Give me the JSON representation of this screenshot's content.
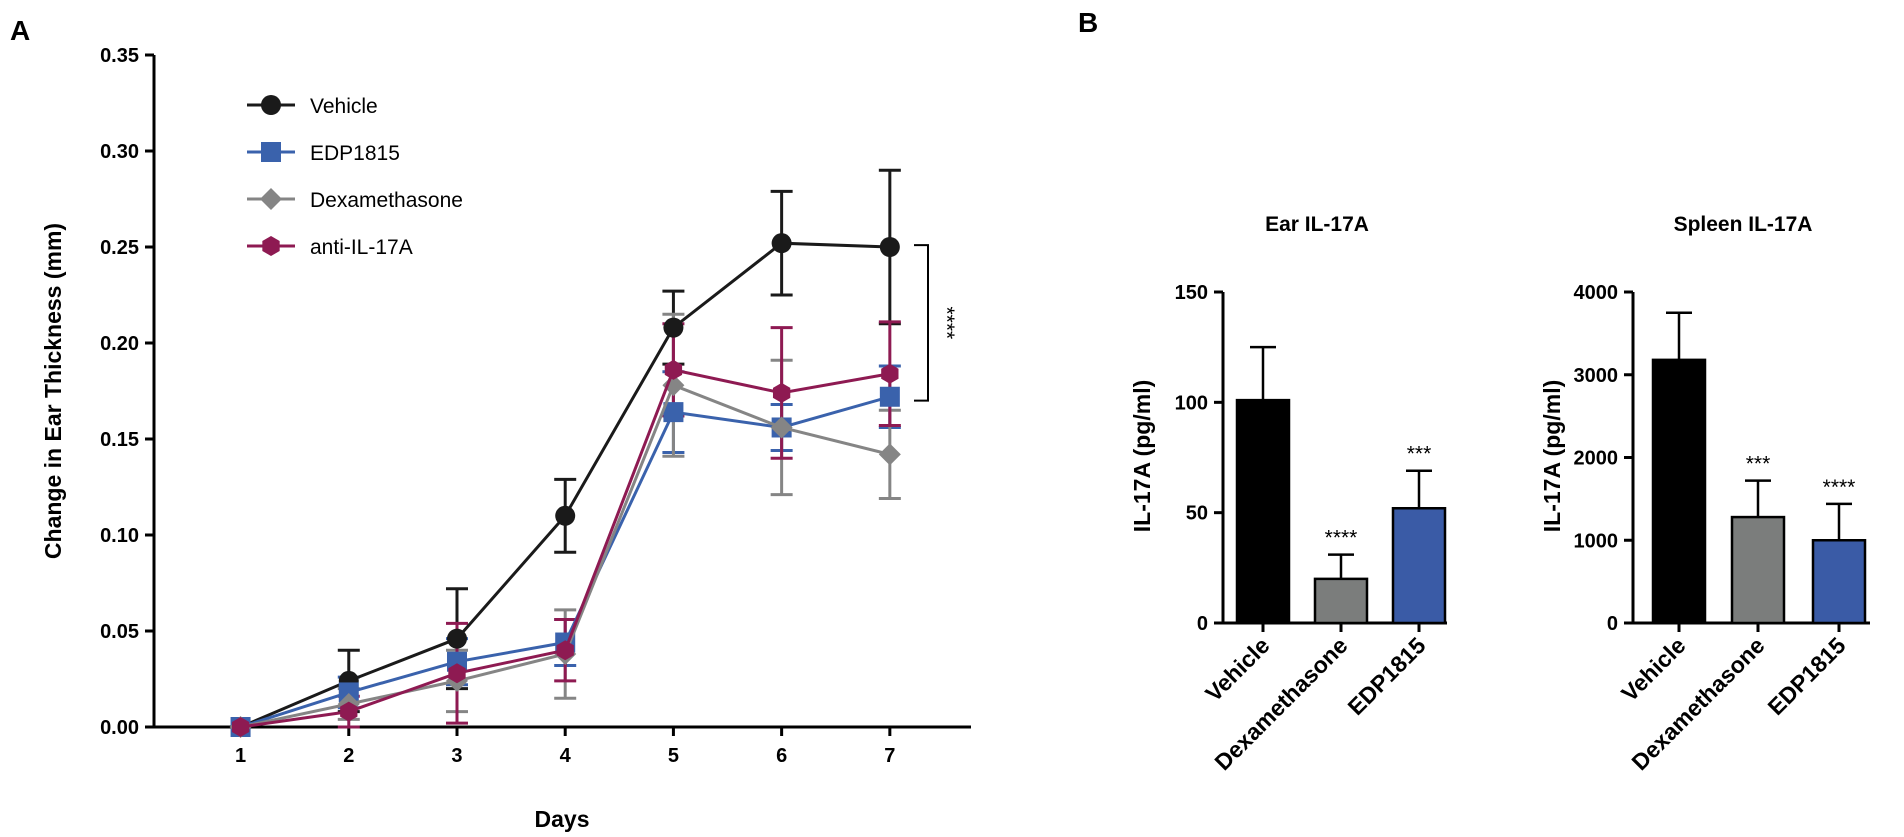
{
  "panels": {
    "a": "A",
    "b": "B"
  },
  "chart_data": [
    {
      "type": "line",
      "panel": "A",
      "title": "",
      "xlabel": "Days",
      "ylabel": "Change in Ear Thickness (mm)",
      "x": [
        1,
        2,
        3,
        4,
        5,
        6,
        7
      ],
      "x_ticks": [
        "1",
        "2",
        "3",
        "4",
        "5",
        "6",
        "7"
      ],
      "xlim": [
        0.2,
        7.75
      ],
      "ylim": [
        0,
        0.35
      ],
      "y_ticks": [
        "0.00",
        "0.05",
        "0.10",
        "0.15",
        "0.20",
        "0.25",
        "0.30",
        "0.35"
      ],
      "legend_position": "top-left",
      "series": [
        {
          "name": "Vehicle",
          "color": "#1a1a1a",
          "marker": "circle",
          "values": [
            0.0,
            0.024,
            0.046,
            0.11,
            0.208,
            0.252,
            0.25
          ],
          "err": [
            0.0,
            0.016,
            0.026,
            0.019,
            0.019,
            0.027,
            0.04
          ]
        },
        {
          "name": "EDP1815",
          "color": "#3a62ac",
          "marker": "square",
          "values": [
            0.0,
            0.018,
            0.034,
            0.044,
            0.164,
            0.156,
            0.172
          ],
          "err": [
            0.0,
            0.008,
            0.012,
            0.012,
            0.021,
            0.012,
            0.016
          ]
        },
        {
          "name": "Dexamethasone",
          "color": "#858585",
          "marker": "diamond",
          "values": [
            0.0,
            0.012,
            0.024,
            0.038,
            0.178,
            0.156,
            0.142
          ],
          "err": [
            0.0,
            0.008,
            0.016,
            0.023,
            0.037,
            0.035,
            0.023
          ]
        },
        {
          "name": "anti-IL-17A",
          "color": "#8e1a52",
          "marker": "hexagon",
          "values": [
            0.0,
            0.008,
            0.028,
            0.04,
            0.186,
            0.174,
            0.184
          ],
          "err": [
            0.0,
            0.008,
            0.026,
            0.016,
            0.024,
            0.034,
            0.027
          ]
        }
      ],
      "annotation": {
        "text": "****",
        "bracket_y": [
          0.17,
          0.251
        ]
      }
    },
    {
      "type": "bar",
      "panel": "B",
      "title": "Ear IL-17A",
      "xlabel": "",
      "ylabel": "IL-17A (pg/ml)",
      "categories": [
        "Vehicle",
        "Dexamethasone",
        "EDP1815"
      ],
      "values": [
        101,
        20,
        52
      ],
      "err": [
        24,
        11,
        17
      ],
      "colors": [
        "#000000",
        "#7b7d7c",
        "#3a5ba6"
      ],
      "significance": [
        "",
        "****",
        "***"
      ],
      "ylim": [
        0,
        150
      ],
      "y_ticks": [
        "0",
        "50",
        "100",
        "150"
      ]
    },
    {
      "type": "bar",
      "panel": "B",
      "title": "Spleen IL-17A",
      "xlabel": "",
      "ylabel": "IL-17A (pg/ml)",
      "categories": [
        "Vehicle",
        "Dexamethasone",
        "EDP1815"
      ],
      "values": [
        3180,
        1280,
        1000
      ],
      "err": [
        570,
        440,
        440
      ],
      "colors": [
        "#000000",
        "#7b7d7c",
        "#3a5ba6"
      ],
      "significance": [
        "",
        "***",
        "****"
      ],
      "ylim": [
        0,
        4000
      ],
      "y_ticks": [
        "0",
        "1000",
        "2000",
        "3000",
        "4000"
      ]
    }
  ]
}
